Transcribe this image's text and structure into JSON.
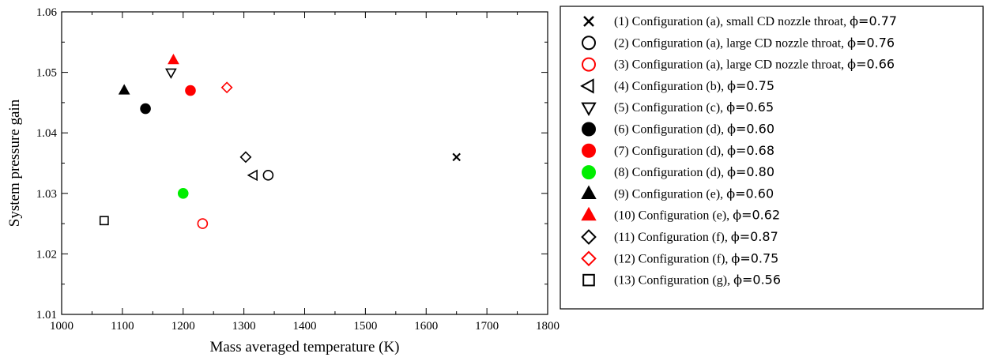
{
  "chart_data": {
    "type": "scatter",
    "title": "",
    "xlabel": "Mass averaged temperature (K)",
    "ylabel": "System pressure gain",
    "xlim": [
      1000,
      1800
    ],
    "ylim": [
      1.01,
      1.06
    ],
    "x_ticks": [
      "1000",
      "1100",
      "1200",
      "1300",
      "1400",
      "1500",
      "1600",
      "1700",
      "1800"
    ],
    "y_ticks": [
      "1.01",
      "1.02",
      "1.03",
      "1.04",
      "1.05",
      "1.06"
    ],
    "grid": false,
    "legend_position": "right",
    "series": [
      {
        "name_prefix": "(1) Configuration (a), small CD nozzle throat, ",
        "phi_symbol": "ϕ",
        "phi_value": "=0.77",
        "marker": "x",
        "color": "#000000",
        "filled": false,
        "x": 1650,
        "y": 1.036
      },
      {
        "name_prefix": "(2) Configuration (a), large CD nozzle throat, ",
        "phi_symbol": "ϕ",
        "phi_value": "=0.76",
        "marker": "circle",
        "color": "#000000",
        "filled": false,
        "x": 1340,
        "y": 1.033
      },
      {
        "name_prefix": "(3) Configuration (a), large CD nozzle throat, ",
        "phi_symbol": "ϕ",
        "phi_value": "=0.66",
        "marker": "circle",
        "color": "#ff0000",
        "filled": false,
        "x": 1232,
        "y": 1.025
      },
      {
        "name_prefix": "(4) Configuration (b), ",
        "phi_symbol": "ϕ",
        "phi_value": "=0.75",
        "marker": "triangle-left",
        "color": "#000000",
        "filled": false,
        "x": 1316,
        "y": 1.033
      },
      {
        "name_prefix": "(5) Configuration (c), ",
        "phi_symbol": "ϕ",
        "phi_value": "=0.65",
        "marker": "triangle-down",
        "color": "#000000",
        "filled": false,
        "x": 1180,
        "y": 1.05
      },
      {
        "name_prefix": "(6) Configuration (d), ",
        "phi_symbol": "ϕ",
        "phi_value": "=0.60",
        "marker": "circle",
        "color": "#000000",
        "filled": true,
        "x": 1138,
        "y": 1.044
      },
      {
        "name_prefix": "(7) Configuration (d), ",
        "phi_symbol": "ϕ",
        "phi_value": "=0.68",
        "marker": "circle",
        "color": "#ff0000",
        "filled": true,
        "x": 1212,
        "y": 1.047
      },
      {
        "name_prefix": "(8) Configuration (d), ",
        "phi_symbol": "ϕ",
        "phi_value": "=0.80",
        "marker": "circle",
        "color": "#00ee00",
        "filled": true,
        "x": 1200,
        "y": 1.03
      },
      {
        "name_prefix": "(9) Configuration (e), ",
        "phi_symbol": "ϕ",
        "phi_value": "=0.60",
        "marker": "triangle-up",
        "color": "#000000",
        "filled": true,
        "x": 1103,
        "y": 1.047
      },
      {
        "name_prefix": "(10) Configuration (e), ",
        "phi_symbol": "ϕ",
        "phi_value": "=0.62",
        "marker": "triangle-up",
        "color": "#ff0000",
        "filled": true,
        "x": 1184,
        "y": 1.052
      },
      {
        "name_prefix": "(11) Configuration (f), ",
        "phi_symbol": "ϕ",
        "phi_value": "=0.87",
        "marker": "diamond",
        "color": "#000000",
        "filled": false,
        "x": 1303,
        "y": 1.036
      },
      {
        "name_prefix": "(12) Configuration (f), ",
        "phi_symbol": "ϕ",
        "phi_value": "=0.75",
        "marker": "diamond",
        "color": "#ff0000",
        "filled": false,
        "x": 1272,
        "y": 1.0475
      },
      {
        "name_prefix": "(13) Configuration (g), ",
        "phi_symbol": "ϕ",
        "phi_value": "=0.56",
        "marker": "square",
        "color": "#000000",
        "filled": false,
        "x": 1070,
        "y": 1.0255
      }
    ]
  }
}
